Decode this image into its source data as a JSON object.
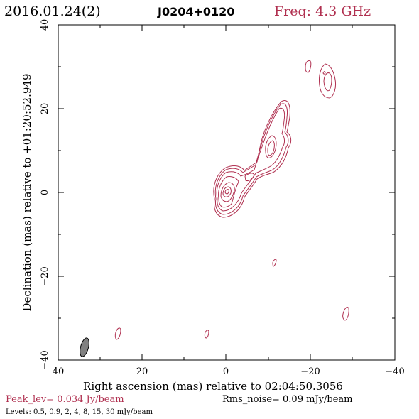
{
  "header": {
    "date": "2016.01.24(2)",
    "source": "J0204+0120",
    "freq": "Freq: 4.3 GHz"
  },
  "axes": {
    "xlabel": "Right ascension (mas) relative to 02:04:50.3056",
    "ylabel": "Declination (mas) relative to +01:20:52.949",
    "xticks": [
      "40",
      "20",
      "0",
      "−20",
      "−40"
    ],
    "yticks": [
      "−40",
      "−20",
      "0",
      "20",
      "40"
    ]
  },
  "footer": {
    "peak": "Peak_lev=  0.034 Jy/beam",
    "rms": "Rms_noise= 0.09 mJy/beam",
    "levels": "Levels: 0.5, 0.9,    2,    4,    8,   15,   30 mJy/beam"
  },
  "colors": {
    "contour": "#b03050",
    "beam": "#808080",
    "header_freq": "#b03050",
    "peak_text": "#b03050",
    "frame": "#000000"
  },
  "chart_data": {
    "type": "contour",
    "x_range": [
      40,
      -40
    ],
    "y_range": [
      -40,
      40
    ],
    "x_unit": "mas",
    "y_unit": "mas",
    "peak_jy_per_beam": 0.034,
    "rms_mjy_per_beam": 0.09,
    "contour_levels_mjy_per_beam": [
      0.5,
      0.9,
      2,
      4,
      8,
      15,
      30
    ],
    "beam": {
      "center": [
        33.5,
        -37
      ],
      "major_mas": 4.6,
      "minor_mas": 2.0,
      "pa_deg": 15
    }
  }
}
